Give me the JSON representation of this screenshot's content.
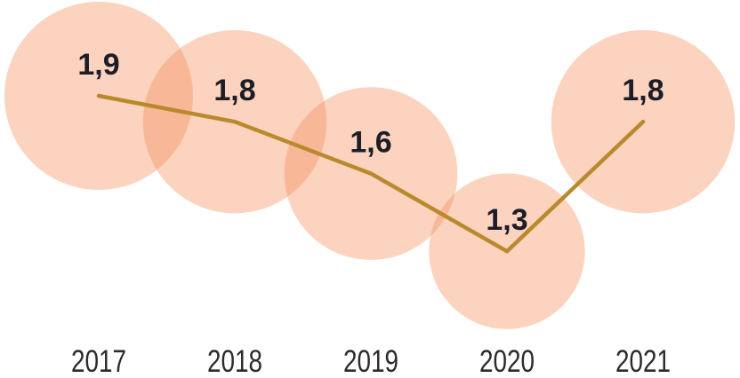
{
  "figure": {
    "description": "Trend line chart with translucent overlapping bubbles sized proportionally to the yearly value"
  },
  "chart_data": {
    "type": "line",
    "variant": "line-with-proportional-bubbles",
    "categories": [
      "2017",
      "2018",
      "2019",
      "2020",
      "2021"
    ],
    "values": [
      1.9,
      1.8,
      1.6,
      1.3,
      1.8
    ],
    "value_labels": [
      "1,9",
      "1,8",
      "1,6",
      "1,3",
      "1,8"
    ],
    "title": "",
    "xlabel": "",
    "ylabel": "",
    "legend": "none",
    "grid": false,
    "axes_visible": false,
    "bubble_area_proportional_to_value": true,
    "colors": {
      "bubble_fill": "#F4925D",
      "bubble_opacity": 0.4,
      "line": "#B9892C",
      "value_label": "#1D1D27",
      "axis_label": "#2B2B2B",
      "background": "#FFFFFF"
    }
  }
}
